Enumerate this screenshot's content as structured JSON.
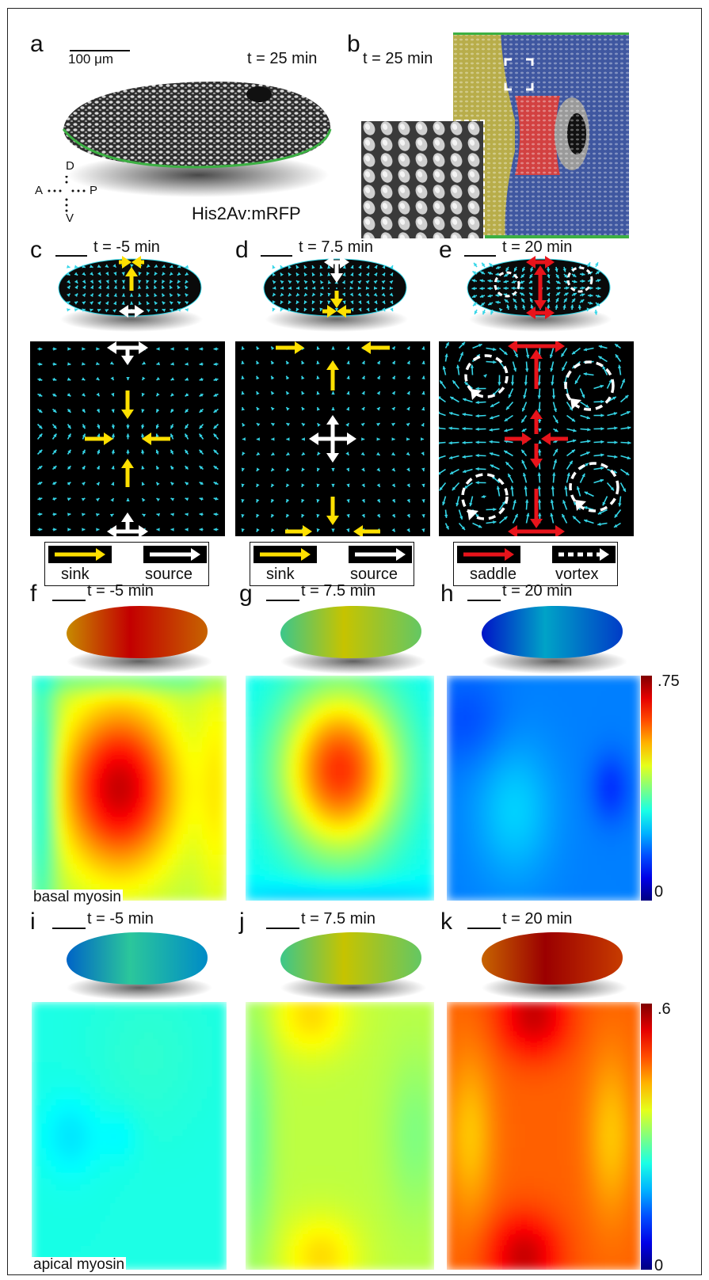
{
  "panel_a": {
    "letter": "a",
    "scale_label": "100 μm",
    "time": "t = 25 min",
    "marker": "His2Av:mRFP",
    "axis_d": "D",
    "axis_a": "A",
    "axis_p": "P",
    "axis_v": "V"
  },
  "panel_b": {
    "letter": "b",
    "time": "t = 25 min"
  },
  "flow_panels": [
    {
      "letter": "c",
      "time": "t = -5 min",
      "legend_left": "sink",
      "legend_right": "source"
    },
    {
      "letter": "d",
      "time": "t = 7.5 min",
      "legend_left": "sink",
      "legend_right": "source"
    },
    {
      "letter": "e",
      "time": "t = 20 min",
      "legend_left": "saddle",
      "legend_right": "vortex"
    }
  ],
  "basal_panels": [
    {
      "letter": "f",
      "time": "t = -5 min"
    },
    {
      "letter": "g",
      "time": "t = 7.5 min"
    },
    {
      "letter": "h",
      "time": "t = 20 min"
    }
  ],
  "apical_panels": [
    {
      "letter": "i",
      "time": "t = -5 min"
    },
    {
      "letter": "j",
      "time": "t = 7.5 min"
    },
    {
      "letter": "k",
      "time": "t = 20 min"
    }
  ],
  "basal_colorbar": {
    "max": ".75",
    "min": "0",
    "caption": "basal myosin"
  },
  "apical_colorbar": {
    "max": ".6",
    "min": "0",
    "caption": "apical myosin"
  },
  "colors": {
    "flow_arrow": "#35d6e8",
    "sink": "#ffe000",
    "source": "#ffffff",
    "saddle": "#e8141b",
    "embryo_outline": "#3cb043",
    "region_yellow": "#b8ad4a",
    "region_red": "#d24141",
    "region_blue": "#3f57a0"
  }
}
